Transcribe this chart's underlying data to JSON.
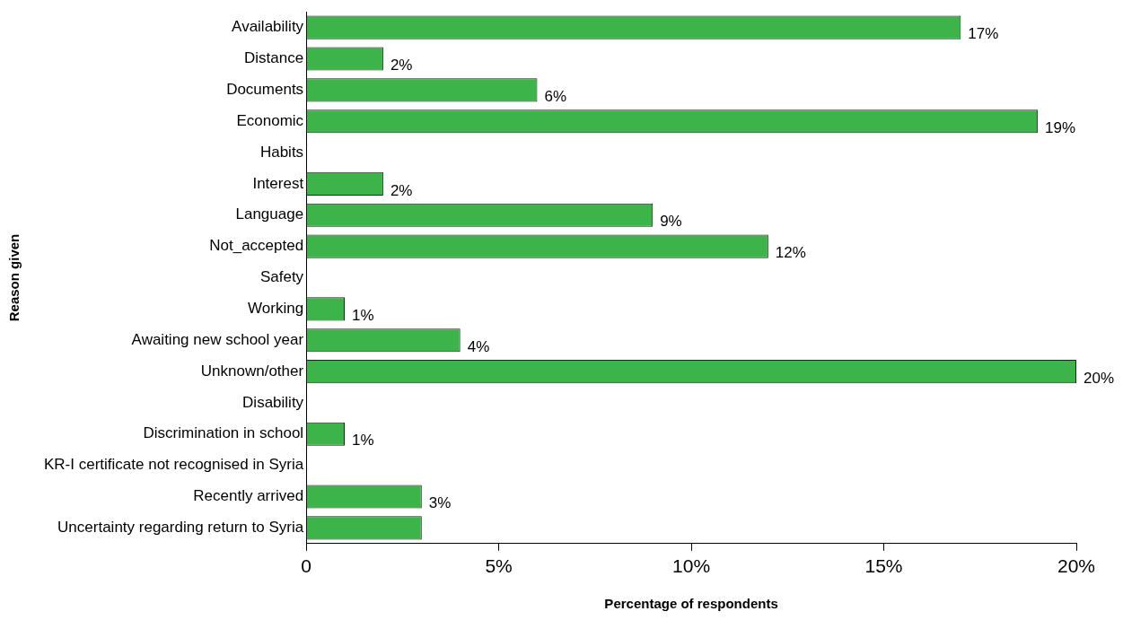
{
  "chart_data": {
    "type": "bar",
    "orientation": "horizontal",
    "xlabel": "Percentage of respondents",
    "ylabel": "Reason given",
    "categories": [
      "Availability",
      "Distance",
      "Documents",
      "Economic",
      "Habits",
      "Interest",
      "Language",
      "Not_accepted",
      "Safety",
      "Working",
      "Awaiting new school year",
      "Unknown/other",
      "Disability",
      "Discrimination in school",
      "KR-I certificate not recognised in Syria",
      "Recently arrived",
      "Uncertainty regarding return to Syria"
    ],
    "values": [
      17,
      2,
      6,
      19,
      0,
      2,
      9,
      12,
      0,
      1,
      4,
      20,
      0,
      1,
      0,
      3,
      3
    ],
    "value_labels": [
      "17%",
      "2%",
      "6%",
      "19%",
      null,
      "2%",
      "9%",
      "12%",
      null,
      "1%",
      "4%",
      "20%",
      null,
      "1%",
      null,
      "3%",
      null
    ],
    "color": "#3cb44a",
    "xlim": [
      0,
      20
    ],
    "xticks": [
      {
        "value": 0,
        "label": "0"
      },
      {
        "value": 5,
        "label": "5%"
      },
      {
        "value": 10,
        "label": "10%"
      },
      {
        "value": 15,
        "label": "15%"
      },
      {
        "value": 20,
        "label": "20%"
      }
    ],
    "grid": false,
    "legend": false
  }
}
